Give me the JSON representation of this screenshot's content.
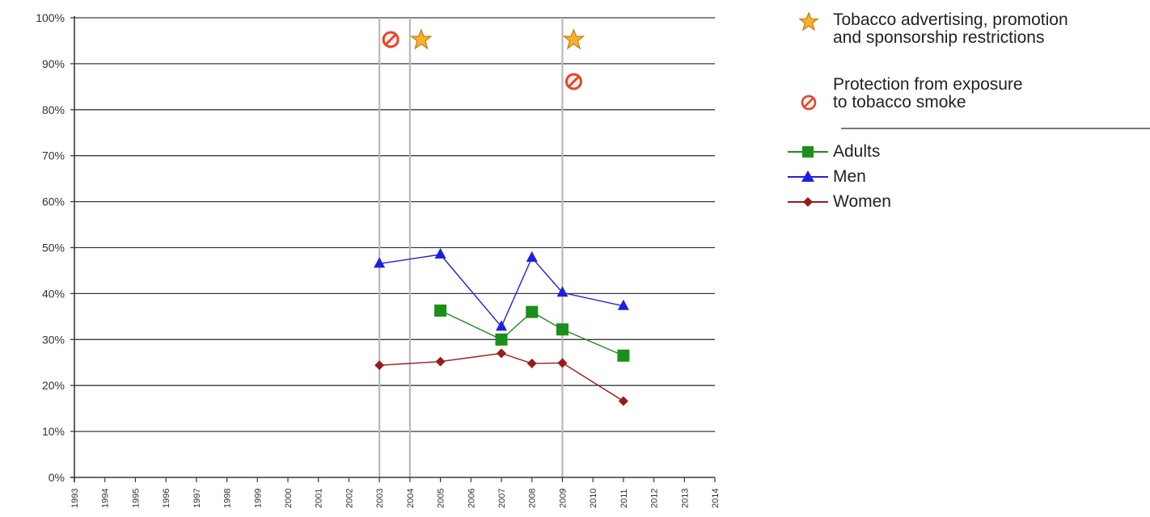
{
  "chart_data": {
    "type": "line",
    "x": [
      "1993",
      "1994",
      "1995",
      "1996",
      "1997",
      "1998",
      "1999",
      "2000",
      "2001",
      "2002",
      "2003",
      "2004",
      "2005",
      "2006",
      "2007",
      "2008",
      "2009",
      "2010",
      "2011",
      "2012",
      "2013",
      "2014"
    ],
    "ylim": [
      0,
      100
    ],
    "yticks": [
      "0%",
      "10%",
      "20%",
      "30%",
      "40%",
      "50%",
      "60%",
      "70%",
      "80%",
      "90%",
      "100%"
    ],
    "grid": "horizontal",
    "legend_position": "right",
    "series": [
      {
        "name": "Adults",
        "color": "#1a8f1a",
        "marker": "square",
        "points": [
          {
            "x": "2005",
            "y": 36.3
          },
          {
            "x": "2007",
            "y": 30.0
          },
          {
            "x": "2008",
            "y": 36.0
          },
          {
            "x": "2009",
            "y": 32.2
          },
          {
            "x": "2011",
            "y": 26.5
          }
        ]
      },
      {
        "name": "Men",
        "color": "#1f1fe0",
        "marker": "triangle",
        "points": [
          {
            "x": "2003",
            "y": 46.5
          },
          {
            "x": "2005",
            "y": 48.5
          },
          {
            "x": "2007",
            "y": 32.8
          },
          {
            "x": "2008",
            "y": 47.8
          },
          {
            "x": "2009",
            "y": 40.2
          },
          {
            "x": "2011",
            "y": 37.3
          }
        ]
      },
      {
        "name": "Women",
        "color": "#9b1a1a",
        "marker": "diamond",
        "points": [
          {
            "x": "2003",
            "y": 24.4
          },
          {
            "x": "2005",
            "y": 25.2
          },
          {
            "x": "2007",
            "y": 27.0
          },
          {
            "x": "2008",
            "y": 24.8
          },
          {
            "x": "2009",
            "y": 24.9
          },
          {
            "x": "2011",
            "y": 16.6
          }
        ]
      }
    ],
    "policy_markers": [
      {
        "type": "smoke",
        "x": "2003"
      },
      {
        "type": "star",
        "x": "2004"
      },
      {
        "type": "star",
        "x": "2009"
      },
      {
        "type": "smoke",
        "x": "2009"
      }
    ],
    "policy_legend": [
      {
        "type": "star",
        "label": "Tobacco advertising, promotion\nand sponsorship restrictions"
      },
      {
        "type": "smoke",
        "label": "Protection from exposure\nto tobacco smoke"
      }
    ]
  }
}
